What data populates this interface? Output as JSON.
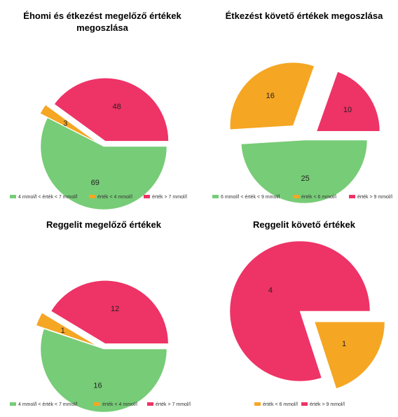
{
  "colors": {
    "green": "#77cc77",
    "orange": "#f5a623",
    "red": "#ee3366"
  },
  "chart_data": [
    {
      "type": "pie",
      "title_lines": [
        "Éhomi és étkezést megelőző értékek",
        "megoszlása"
      ],
      "slices": [
        {
          "label": "4 mmol/l < érték < 7 mmol/l",
          "value": 69,
          "color": "#77cc77"
        },
        {
          "label": "érték < 4 mmol/l",
          "value": 3,
          "color": "#f5a623"
        },
        {
          "label": "érték > 7 mmol/l",
          "value": 48,
          "color": "#ee3366"
        }
      ],
      "legend": [
        "4 mmol/l < érték < 7 mmol/l",
        "érték < 4 mmol/l",
        "érték > 7 mmol/l"
      ],
      "legend_position": "bottom"
    },
    {
      "type": "pie",
      "title_lines": [
        "Étkezést követő értékek megoszlása"
      ],
      "slices": [
        {
          "label": "6 mmol/l < érték < 9 mmol/l",
          "value": 25,
          "color": "#77cc77"
        },
        {
          "label": "érték < 6 mmol/l",
          "value": 16,
          "color": "#f5a623"
        },
        {
          "label": "érték > 9 mmol/l",
          "value": 10,
          "color": "#ee3366"
        }
      ],
      "legend": [
        "6 mmol/l < érték < 9 mmol/l",
        "érték < 6 mmol/l",
        "érték > 9 mmol/l"
      ],
      "legend_position": "bottom"
    },
    {
      "type": "pie",
      "title_lines": [
        "Reggelit megelőző értékek"
      ],
      "slices": [
        {
          "label": "4 mmol/l < érték < 7 mmol/l",
          "value": 16,
          "color": "#77cc77"
        },
        {
          "label": "érték < 4 mmol/l",
          "value": 1,
          "color": "#f5a623"
        },
        {
          "label": "érték > 7 mmol/l",
          "value": 12,
          "color": "#ee3366"
        }
      ],
      "legend": [
        "4 mmol/l < érték < 7 mmol/l",
        "érték < 4 mmol/l",
        "érték > 7 mmol/l"
      ],
      "legend_position": "bottom"
    },
    {
      "type": "pie",
      "title_lines": [
        "Reggelit követő értékek"
      ],
      "slices": [
        {
          "label": "érték < 6 mmol/l",
          "value": 1,
          "color": "#f5a623"
        },
        {
          "label": "érték > 9 mmol/l",
          "value": 4,
          "color": "#ee3366"
        }
      ],
      "legend": [
        "érték < 6 mmol/l",
        "érték > 9 mmol/l"
      ],
      "legend_position": "bottom"
    }
  ]
}
